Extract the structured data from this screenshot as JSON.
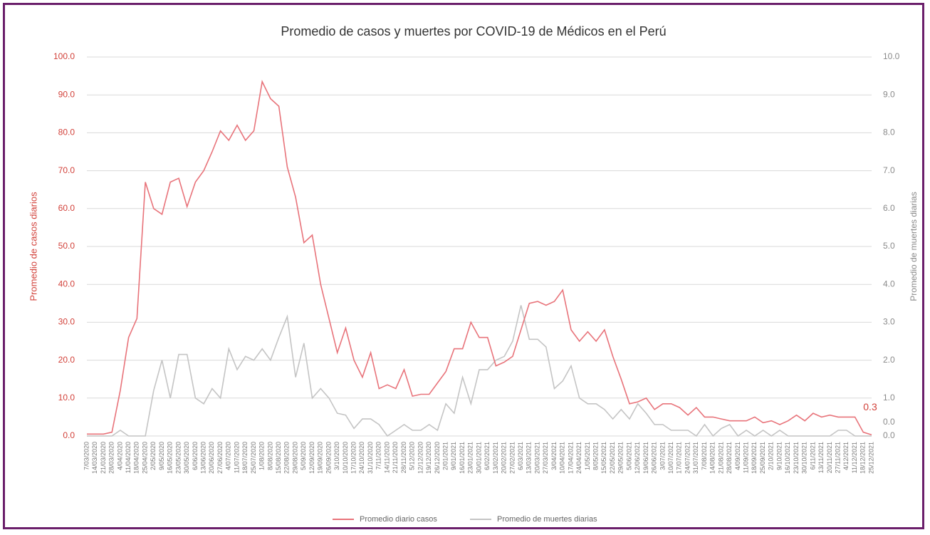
{
  "chart_data": {
    "type": "line",
    "title": "Promedio de casos y muertes por COVID-19 de Médicos en el Perú",
    "y_label": "Promedio de casos diarios",
    "y2_label": "Promedio de muertes diarias",
    "categories": [
      "7/03/2020",
      "14/03/2020",
      "21/03/2020",
      "28/03/2020",
      "4/04/2020",
      "11/04/2020",
      "18/04/2020",
      "25/04/2020",
      "2/05/2020",
      "9/05/2020",
      "16/05/2020",
      "23/05/2020",
      "30/05/2020",
      "6/06/2020",
      "13/06/2020",
      "20/06/2020",
      "27/06/2020",
      "4/07/2020",
      "11/07/2020",
      "18/07/2020",
      "25/07/2020",
      "1/08/2020",
      "8/08/2020",
      "15/08/2020",
      "22/08/2020",
      "29/08/2020",
      "5/09/2020",
      "12/09/2020",
      "19/09/2020",
      "26/09/2020",
      "3/10/2020",
      "10/10/2020",
      "17/10/2020",
      "24/10/2020",
      "31/10/2020",
      "7/11/2020",
      "14/11/2020",
      "21/11/2020",
      "28/11/2020",
      "5/12/2020",
      "12/12/2020",
      "19/12/2020",
      "26/12/2020",
      "2/01/2021",
      "9/01/2021",
      "16/01/2021",
      "23/01/2021",
      "30/01/2021",
      "6/02/2021",
      "13/02/2021",
      "20/02/2021",
      "27/02/2021",
      "6/03/2021",
      "13/03/2021",
      "20/03/2021",
      "27/03/2021",
      "3/04/2021",
      "10/04/2021",
      "17/04/2021",
      "24/04/2021",
      "1/05/2021",
      "8/05/2021",
      "15/05/2021",
      "22/05/2021",
      "29/05/2021",
      "5/06/2021",
      "12/06/2021",
      "19/06/2021",
      "26/06/2021",
      "3/07/2021",
      "10/07/2021",
      "17/07/2021",
      "24/07/2021",
      "31/07/2021",
      "7/08/2021",
      "14/08/2021",
      "21/08/2021",
      "28/08/2021",
      "4/09/2021",
      "11/09/2021",
      "18/09/2021",
      "25/09/2021",
      "2/10/2021",
      "9/10/2021",
      "16/10/2021",
      "23/10/2021",
      "30/10/2021",
      "6/11/2021",
      "13/11/2021",
      "20/11/2021",
      "27/11/2021",
      "4/12/2021",
      "11/12/2021",
      "18/12/2021",
      "25/12/2021"
    ],
    "series": [
      {
        "name": "Promedio diario casos",
        "color": "#e8737a",
        "axis": "y",
        "values": [
          0.5,
          0.5,
          0.5,
          1,
          12,
          26,
          31,
          67,
          60,
          58.5,
          67,
          68,
          60.5,
          67,
          70,
          75,
          80.5,
          78,
          82,
          78,
          80.5,
          93.5,
          89,
          87,
          71,
          63,
          51,
          53,
          40,
          31,
          22,
          28.5,
          20,
          15.5,
          22,
          12.5,
          13.5,
          12.5,
          17.5,
          10.5,
          11,
          11,
          14,
          17,
          23,
          23,
          30,
          26,
          26,
          18.5,
          19.5,
          21,
          28,
          35,
          35.5,
          34.5,
          35.5,
          38.5,
          28,
          25,
          27.5,
          25,
          28,
          21,
          15,
          8.5,
          9,
          10,
          7,
          8.5,
          8.5,
          7.5,
          5.5,
          7.5,
          5,
          5,
          4.5,
          4,
          4,
          4,
          5,
          3.5,
          4,
          3,
          4,
          5.5,
          4,
          6,
          5,
          5.5,
          5,
          5,
          5,
          1,
          0.3
        ],
        "value_labels": [
          null,
          null,
          null,
          null,
          null,
          null,
          null,
          null,
          null,
          null,
          null,
          null,
          null,
          null,
          null,
          null,
          null,
          null,
          null,
          null,
          null,
          null,
          null,
          null,
          null,
          null,
          null,
          null,
          null,
          null,
          null,
          null,
          null,
          null,
          null,
          null,
          null,
          null,
          null,
          null,
          null,
          null,
          null,
          null,
          null,
          null,
          null,
          null,
          null,
          null,
          null,
          null,
          null,
          null,
          null,
          null,
          null,
          null,
          null,
          null,
          null,
          null,
          null,
          null,
          null,
          null,
          null,
          null,
          null,
          null,
          null,
          null,
          null,
          null,
          null,
          null,
          null,
          null,
          null,
          null,
          null,
          null,
          null,
          null,
          null,
          null,
          null,
          null,
          null,
          null,
          null,
          null,
          null,
          null,
          "0.3"
        ]
      },
      {
        "name": "Promedio de muertes diarias",
        "color": "#c4c4c4",
        "axis": "y2",
        "values": [
          0,
          0,
          0,
          0,
          0.15,
          0,
          0,
          0,
          1.2,
          2,
          1,
          2.15,
          2.15,
          1,
          0.85,
          1.25,
          1,
          2.3,
          1.75,
          2.1,
          2,
          2.3,
          2,
          2.6,
          3.15,
          1.55,
          2.45,
          1,
          1.25,
          1,
          0.6,
          0.55,
          0.2,
          0.45,
          0.45,
          0.3,
          0,
          0.15,
          0.3,
          0.15,
          0.15,
          0.3,
          0.15,
          0.85,
          0.6,
          1.55,
          0.85,
          1.75,
          1.75,
          2,
          2.1,
          2.5,
          3.45,
          2.55,
          2.55,
          2.35,
          1.25,
          1.45,
          1.85,
          1,
          0.85,
          0.85,
          0.7,
          0.45,
          0.7,
          0.45,
          0.85,
          0.6,
          0.3,
          0.3,
          0.15,
          0.15,
          0.15,
          0,
          0.3,
          0,
          0.2,
          0.3,
          0,
          0.15,
          0,
          0.15,
          0,
          0.15,
          0,
          0,
          0,
          0,
          0,
          0,
          0.15,
          0.15,
          0,
          0,
          0
        ],
        "value_labels": [
          null,
          null,
          null,
          null,
          null,
          null,
          null,
          null,
          null,
          null,
          null,
          null,
          null,
          null,
          null,
          null,
          null,
          null,
          null,
          null,
          null,
          null,
          null,
          null,
          null,
          null,
          null,
          null,
          null,
          null,
          null,
          null,
          null,
          null,
          null,
          null,
          null,
          null,
          null,
          null,
          null,
          null,
          null,
          null,
          null,
          null,
          null,
          null,
          null,
          null,
          null,
          null,
          null,
          null,
          null,
          null,
          null,
          null,
          null,
          null,
          null,
          null,
          null,
          null,
          null,
          null,
          null,
          null,
          null,
          null,
          null,
          null,
          null,
          null,
          null,
          null,
          null,
          null,
          null,
          null,
          null,
          null,
          null,
          null,
          null,
          null,
          null,
          null,
          null,
          null,
          null,
          null,
          null,
          null,
          "0.0"
        ]
      }
    ],
    "ylim": [
      0,
      100
    ],
    "yticks": [
      {
        "value": 0,
        "label": "0.0"
      },
      {
        "value": 10,
        "label": "10.0"
      },
      {
        "value": 20,
        "label": "20.0"
      },
      {
        "value": 30,
        "label": "30.0"
      },
      {
        "value": 40,
        "label": "40.0"
      },
      {
        "value": 50,
        "label": "50.0"
      },
      {
        "value": 60,
        "label": "60.0"
      },
      {
        "value": 70,
        "label": "70.0"
      },
      {
        "value": 80,
        "label": "80.0"
      },
      {
        "value": 90,
        "label": "90.0"
      },
      {
        "value": 100,
        "label": "100.0"
      }
    ],
    "y2lim": [
      0,
      10
    ],
    "y2ticks": [
      {
        "value": 0,
        "label": "0.0"
      },
      {
        "value": 1,
        "label": "1.0"
      },
      {
        "value": 2,
        "label": "2.0"
      },
      {
        "value": 3,
        "label": "3.0"
      },
      {
        "value": 4,
        "label": "4.0"
      },
      {
        "value": 5,
        "label": "5.0"
      },
      {
        "value": 6,
        "label": "6.0"
      },
      {
        "value": 7,
        "label": "7.0"
      },
      {
        "value": 8,
        "label": "8.0"
      },
      {
        "value": 9,
        "label": "9.0"
      },
      {
        "value": 10,
        "label": "10.0"
      }
    ],
    "grid": true,
    "legend": "bottom"
  }
}
